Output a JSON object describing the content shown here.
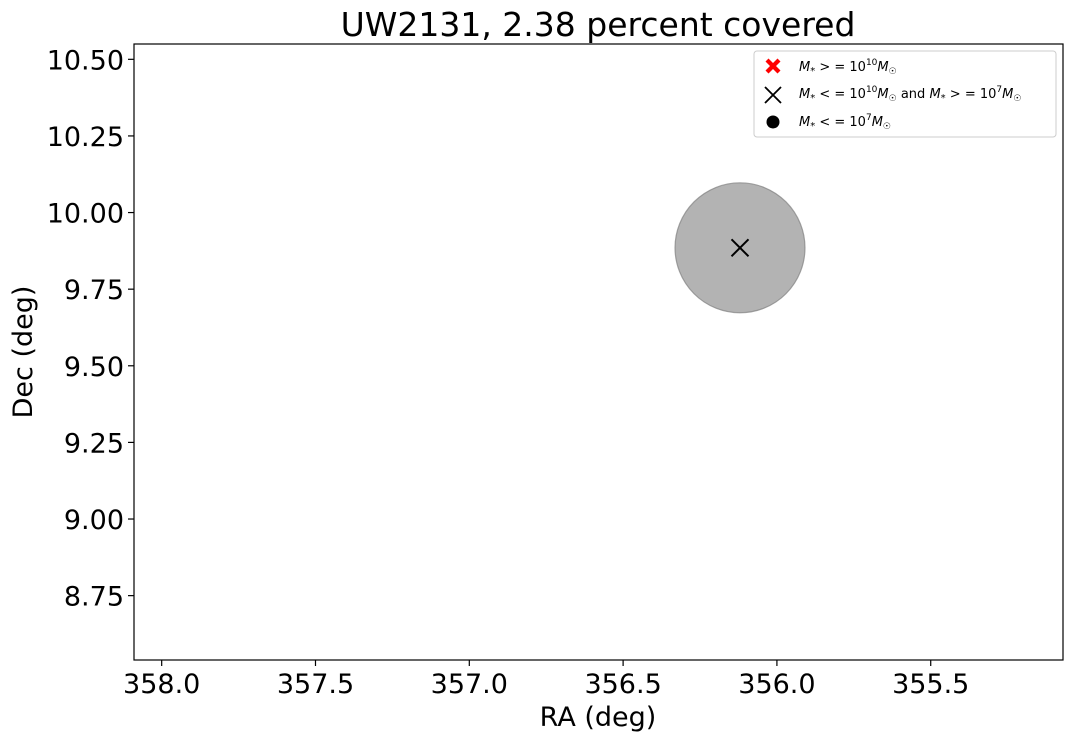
{
  "chart_data": {
    "type": "scatter",
    "title": "UW2131, 2.38 percent covered",
    "xlabel": "RA (deg)",
    "ylabel": "Dec (deg)",
    "xlim": [
      358.09,
      355.07
    ],
    "ylim": [
      8.54,
      10.55
    ],
    "x_inverted": true,
    "x_ticks": [
      358.0,
      357.5,
      357.0,
      356.5,
      356.0,
      355.5
    ],
    "x_tick_labels": [
      "358.0",
      "357.5",
      "357.0",
      "356.5",
      "356.0",
      "355.5"
    ],
    "y_ticks": [
      8.75,
      9.0,
      9.25,
      9.5,
      9.75,
      10.0,
      10.25,
      10.5
    ],
    "y_tick_labels": [
      "8.75",
      "9.00",
      "9.25",
      "9.50",
      "9.75",
      "10.00",
      "10.25",
      "10.50"
    ],
    "grid": false,
    "legend_position": "upper right",
    "legend": [
      {
        "marker": "filled-x",
        "color": "#ff0000",
        "label": "M* >=10^10 M☉"
      },
      {
        "marker": "x",
        "color": "#000000",
        "label": "M* <=10^10 M☉ and M* >=10^7 M☉"
      },
      {
        "marker": "circle",
        "color": "#000000",
        "label": "M* <=10^7 M☉"
      }
    ],
    "coverage_circles": [
      {
        "x": 356.12,
        "y": 9.885,
        "radius_deg": 0.212,
        "color": "#808080",
        "alpha": 0.6
      }
    ],
    "points": [
      {
        "x": 356.12,
        "y": 9.885,
        "marker": "x",
        "color": "#000000"
      }
    ]
  }
}
